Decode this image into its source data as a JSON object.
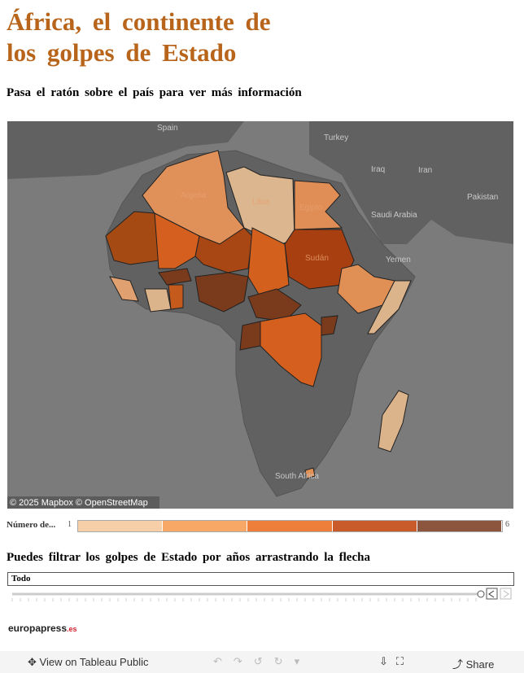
{
  "header": {
    "title_lines": [
      "África, el continente de",
      "los golpes de Estado"
    ],
    "subtitle": "Pasa el ratón sobre el país para ver más información"
  },
  "map": {
    "labels": [
      "Spain",
      "Turkey",
      "Iraq",
      "Iran",
      "Argelia",
      "Libia",
      "Egipto",
      "Saudi Arabia",
      "Pakistan",
      "Sudán",
      "Yemen",
      "South Africa"
    ],
    "attribution": "© 2025 Mapbox © OpenStreetMap"
  },
  "legend": {
    "title": "Número de...",
    "min": 1,
    "max": 6,
    "colors": [
      "#f6cfa8",
      "#f7a866",
      "#ee7f3a",
      "#c95a2a",
      "#8c553d"
    ]
  },
  "filter": {
    "instruction": "Puedes filtrar los golpes de Estado por años arrastrando la flecha",
    "selection": "Todo"
  },
  "footer": {
    "logo": "europapress",
    "logo_suffix": ".es"
  },
  "toolbar": {
    "view": "View on Tableau Public",
    "share": "Share"
  }
}
